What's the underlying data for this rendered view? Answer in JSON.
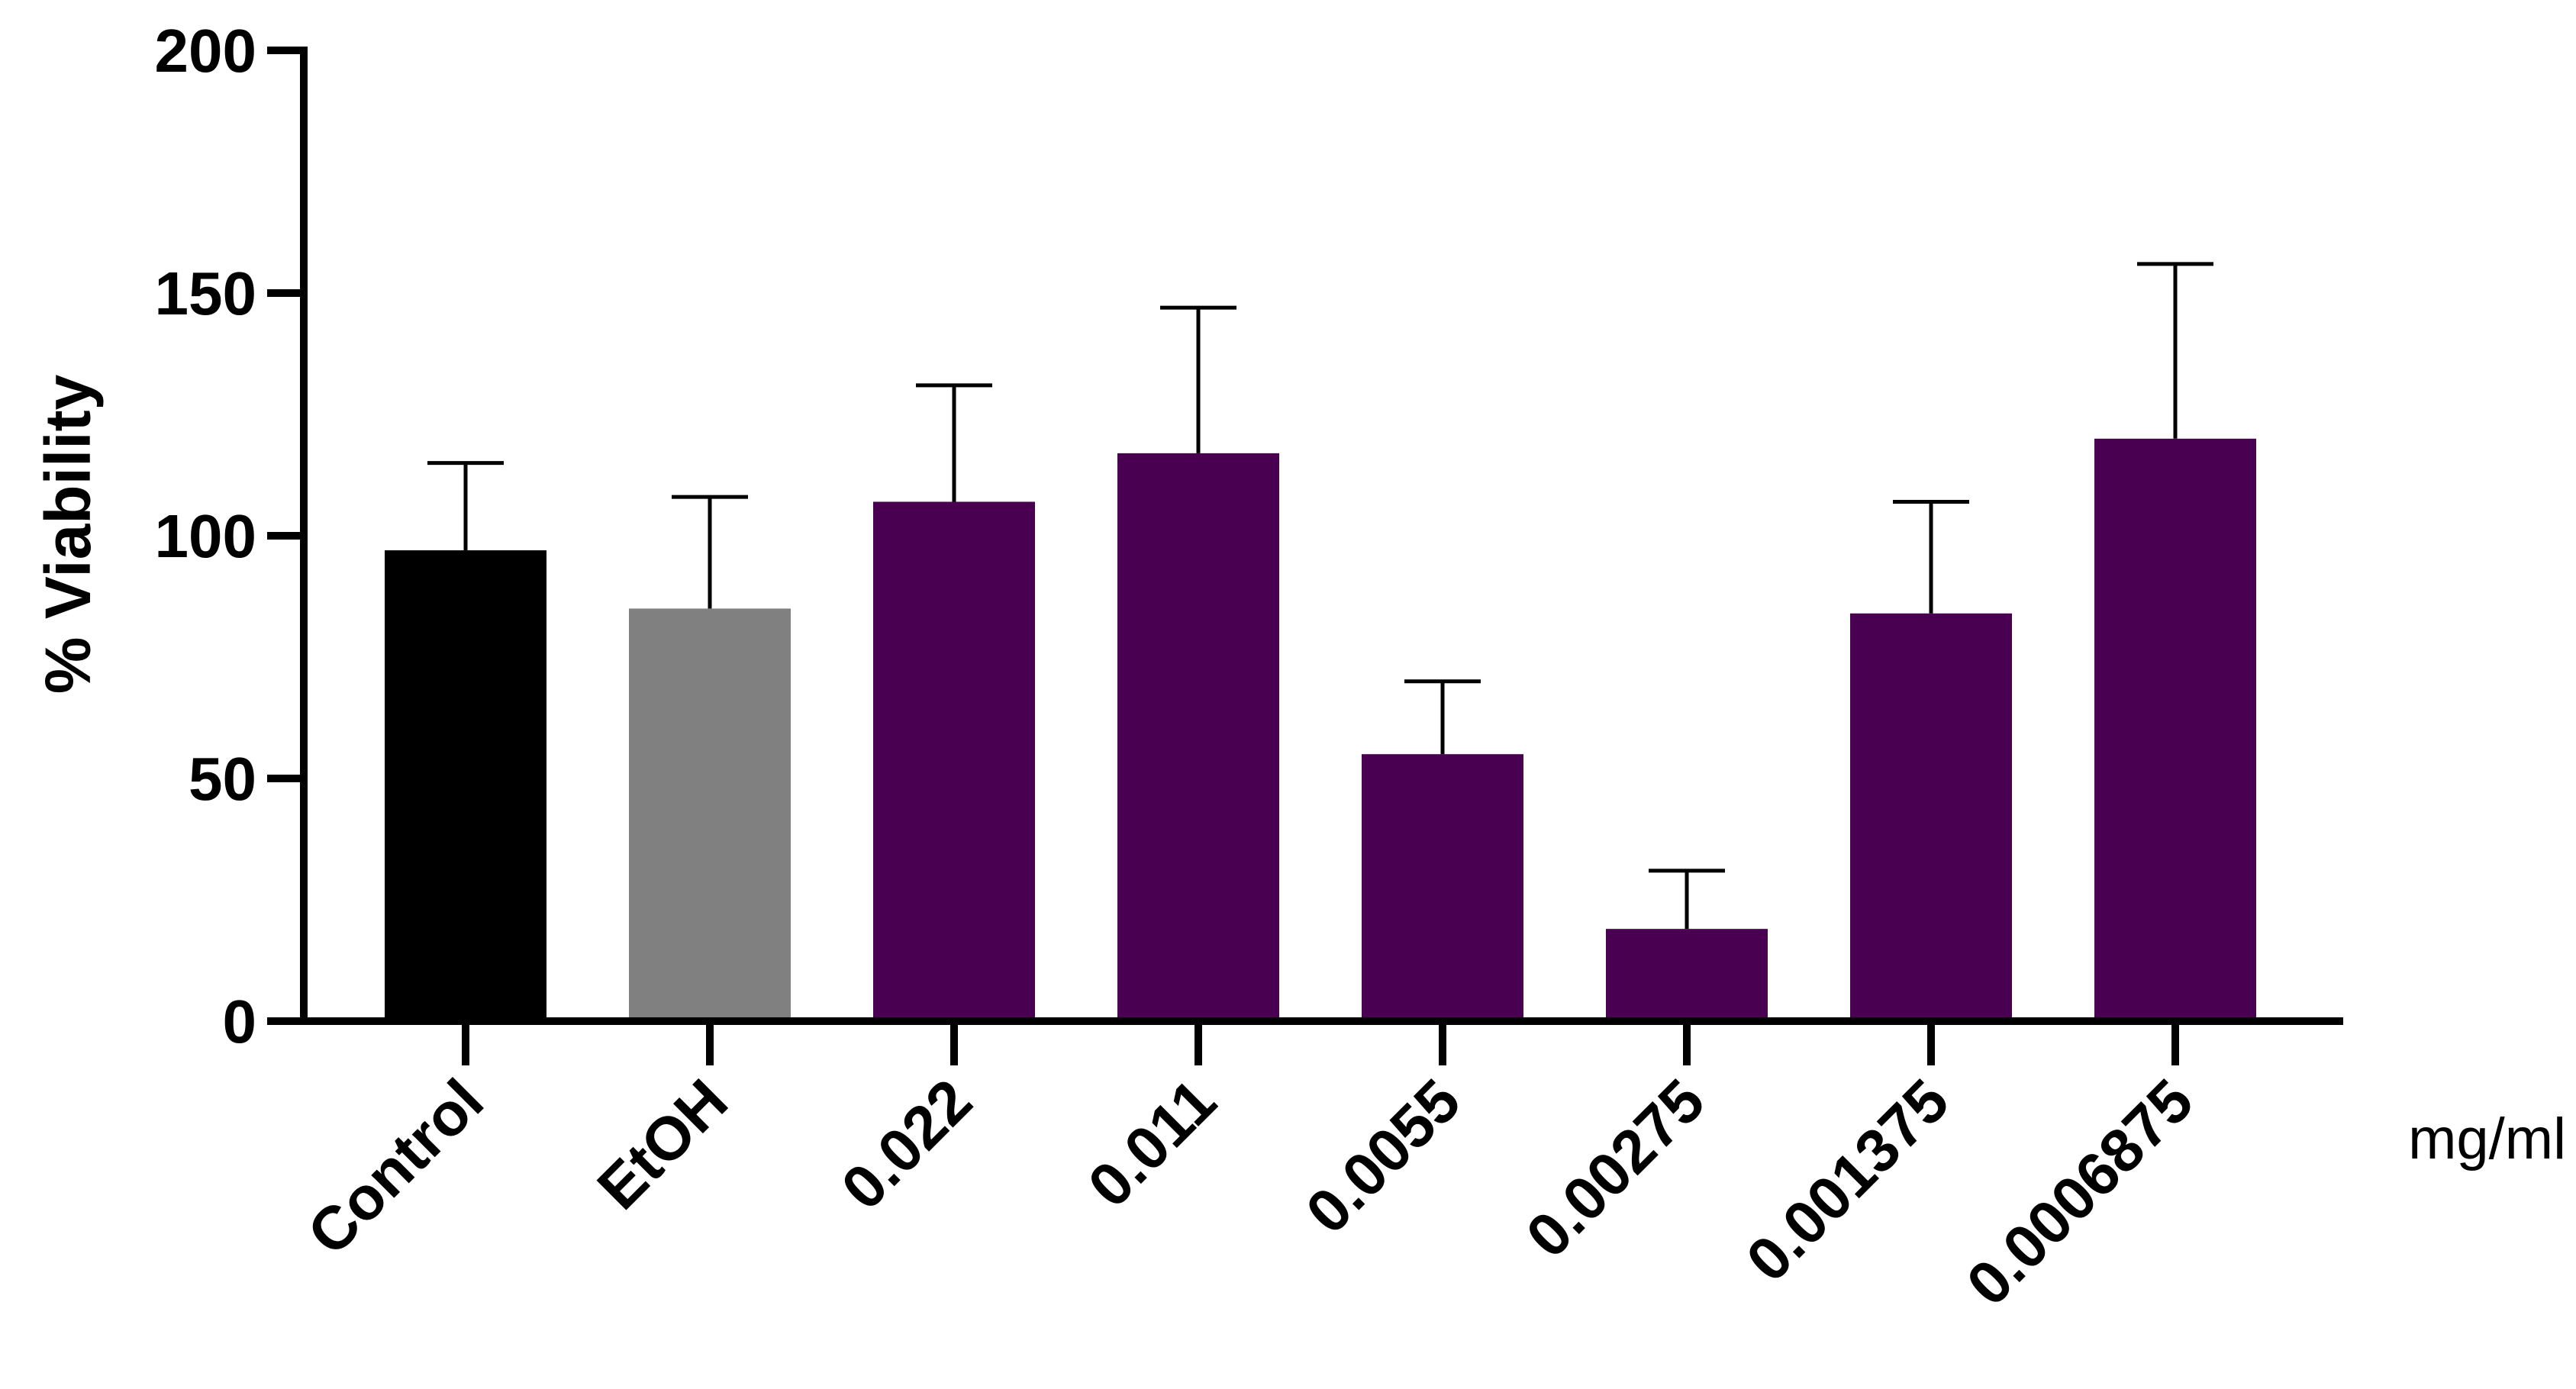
{
  "chart_data": {
    "type": "bar",
    "title": "",
    "xlabel": "",
    "ylabel": "% Viability",
    "x_unit_label": "mg/ml",
    "ylim": [
      0,
      200
    ],
    "yticks": [
      0,
      50,
      100,
      150,
      200
    ],
    "grid": false,
    "legend": "none",
    "categories": [
      "Control",
      "EtOH",
      "0.022",
      "0.011",
      "0.0055",
      "0.00275",
      "0.001375",
      "0.0006875"
    ],
    "values": [
      97,
      85,
      107,
      117,
      55,
      19,
      84,
      120
    ],
    "error_upper": [
      115,
      108,
      131,
      147,
      70,
      31,
      107,
      156
    ],
    "colors": [
      "#000000",
      "#808080",
      "#4a0050",
      "#4a0050",
      "#4a0050",
      "#4a0050",
      "#4a0050",
      "#4a0050"
    ],
    "error_bar_color": "#000000"
  }
}
